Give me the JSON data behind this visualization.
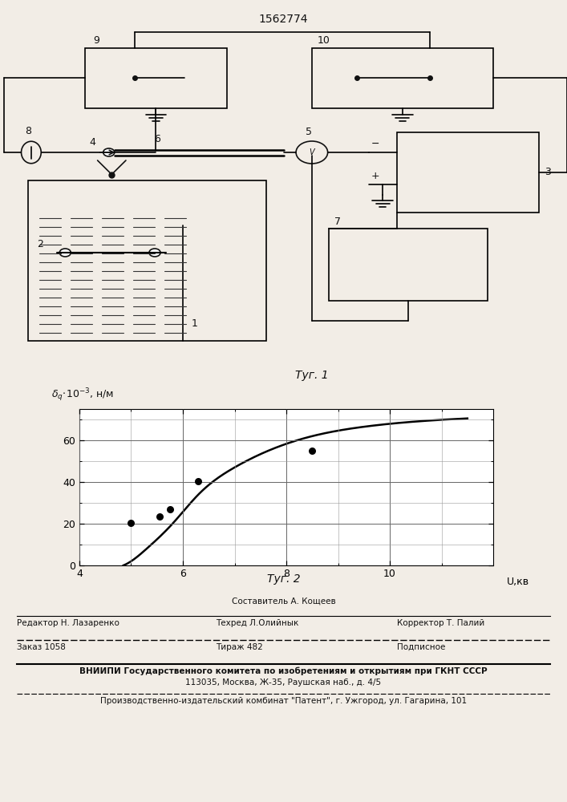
{
  "patent_number": "1562774",
  "fig1_label": "Τуг. 1",
  "fig2_label": "Τуг. 2",
  "graph_xlabel": "U,кв",
  "x_ticks": [
    4,
    6,
    8,
    10
  ],
  "y_ticks": [
    0,
    20,
    40,
    60
  ],
  "xlim": [
    4,
    12
  ],
  "ylim": [
    0,
    75
  ],
  "curve_x": [
    4.85,
    5.0,
    5.3,
    5.8,
    6.3,
    7.0,
    7.8,
    8.5,
    9.5,
    10.5,
    11.5
  ],
  "curve_y": [
    0.0,
    2.0,
    8.0,
    20.0,
    34.0,
    47.0,
    56.5,
    62.0,
    66.5,
    69.0,
    70.5
  ],
  "data_points_x": [
    5.0,
    5.55,
    5.75,
    6.3,
    8.5
  ],
  "data_points_y": [
    20.5,
    23.5,
    27.0,
    40.5,
    55.0
  ],
  "footer_sestavitel": "Составитель А. Кощеев",
  "footer_redaktor": "Редактор Н. Лазаренко",
  "footer_tehred": "Техред Л.Олийнык",
  "footer_korrektor": "Корректор Т. Палий",
  "footer_zakaz": "Заказ 1058",
  "footer_tirazh": "Тираж 482",
  "footer_podpisnoe": "Подписное",
  "footer_vnipi": "ВНИИПИ Государственного комитета по изобретениям и открытиям при ГКНТ СССР",
  "footer_address": "113035, Москва, Ж-35, Раушская наб., д. 4/5",
  "footer_kombinat": "Производственно-издательский комбинат \"Патент\", г. Ужгород, ул. Гагарина, 101",
  "bg_color": "#f2ede6",
  "line_color": "#111111",
  "text_color": "#111111"
}
